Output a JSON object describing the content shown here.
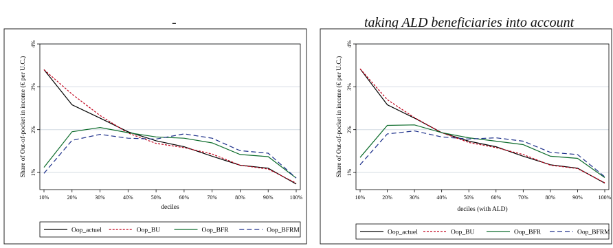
{
  "captions": {
    "left": "-",
    "right": "taking ALD beneficiaries into account"
  },
  "legend_styles": {
    "Oop_actuel": {
      "color": "#000000",
      "dash": ""
    },
    "Oop_BU": {
      "color": "#c0001a",
      "dash": "3,2"
    },
    "Oop_BFR": {
      "color": "#0b6b2a",
      "dash": ""
    },
    "Oop_BFRM": {
      "color": "#1c2f8a",
      "dash": "7,4"
    }
  },
  "chart_data": [
    {
      "type": "line",
      "xlabel": "deciles",
      "ylabel": "Share of Out-of-pocket in income (€ per U.C.)",
      "categories": [
        "10%",
        "20%",
        "30%",
        "40%",
        "50%",
        "60%",
        "70%",
        "80%",
        "90%",
        "100%"
      ],
      "ylim": [
        0.6,
        4.0
      ],
      "yticks": [
        1,
        2,
        3,
        4
      ],
      "ytick_labels": [
        "1%",
        "2%",
        "3%",
        "4%"
      ],
      "grid": true,
      "legend_position": "bottom",
      "series": [
        {
          "name": "Oop_actuel",
          "values": [
            3.4,
            2.58,
            2.27,
            1.95,
            1.74,
            1.6,
            1.38,
            1.17,
            1.1,
            0.73
          ]
        },
        {
          "name": "Oop_BU",
          "values": [
            3.4,
            2.83,
            2.33,
            1.92,
            1.68,
            1.58,
            1.43,
            1.17,
            1.08,
            0.75
          ]
        },
        {
          "name": "Oop_BFR",
          "values": [
            1.12,
            1.95,
            2.05,
            1.93,
            1.83,
            1.8,
            1.69,
            1.42,
            1.37,
            0.87
          ]
        },
        {
          "name": "Oop_BFRM",
          "values": [
            0.98,
            1.75,
            1.89,
            1.8,
            1.78,
            1.9,
            1.8,
            1.51,
            1.45,
            0.87
          ]
        }
      ]
    },
    {
      "type": "line",
      "xlabel": "deciles (with ALD)",
      "ylabel": "Share of Out-of-pocket in income (€ per U.C.)",
      "categories": [
        "10%",
        "20%",
        "30%",
        "40%",
        "50%",
        "60%",
        "70%",
        "80%",
        "90%",
        "100%"
      ],
      "ylim": [
        0.6,
        4.0
      ],
      "yticks": [
        1,
        2,
        3,
        4
      ],
      "ytick_labels": [
        "1%",
        "2%",
        "3%",
        "4%"
      ],
      "grid": true,
      "legend_position": "bottom",
      "series": [
        {
          "name": "Oop_actuel",
          "values": [
            3.42,
            2.58,
            2.27,
            1.93,
            1.73,
            1.6,
            1.38,
            1.18,
            1.1,
            0.75
          ]
        },
        {
          "name": "Oop_BU",
          "values": [
            3.42,
            2.7,
            2.28,
            1.93,
            1.7,
            1.58,
            1.42,
            1.17,
            1.09,
            0.76
          ]
        },
        {
          "name": "Oop_BFR",
          "values": [
            1.35,
            2.1,
            2.11,
            1.93,
            1.81,
            1.73,
            1.65,
            1.38,
            1.33,
            0.88
          ]
        },
        {
          "name": "Oop_BFRM",
          "values": [
            1.18,
            1.9,
            1.97,
            1.83,
            1.78,
            1.81,
            1.73,
            1.47,
            1.42,
            0.9
          ]
        }
      ]
    }
  ]
}
